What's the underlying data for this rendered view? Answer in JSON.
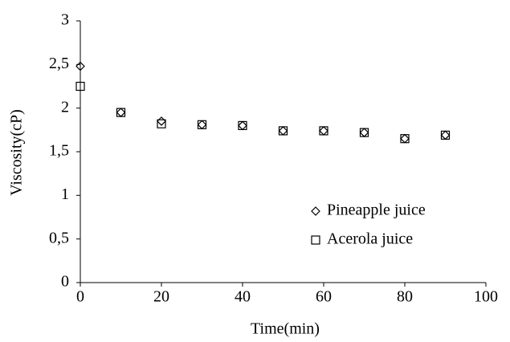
{
  "chart_data": {
    "type": "scatter",
    "x_label": "Time(min)",
    "y_label": "Viscosity(cP)",
    "x": [
      0,
      10,
      20,
      30,
      40,
      50,
      60,
      70,
      80,
      90
    ],
    "series": [
      {
        "name": "Pineapple juice",
        "color": "#000000",
        "marker": "diamond",
        "values": [
          2.48,
          1.95,
          1.85,
          1.81,
          1.8,
          1.74,
          1.74,
          1.72,
          1.65,
          1.69
        ]
      },
      {
        "name": "Acerola juice",
        "color": "#000000",
        "marker": "square",
        "values": [
          2.25,
          1.95,
          1.82,
          1.81,
          1.8,
          1.74,
          1.74,
          1.72,
          1.65,
          1.69
        ]
      }
    ],
    "xlim": [
      0,
      100
    ],
    "xticks": [
      0,
      20,
      40,
      60,
      80,
      100
    ],
    "ylim": [
      0,
      3
    ],
    "yticks": [
      0,
      {
        "value": 0.5,
        "label": "0,5"
      },
      1,
      {
        "value": 1.5,
        "label": "1,5"
      },
      2,
      {
        "value": 2.5,
        "label": "2,5"
      },
      3
    ],
    "grid": false,
    "legend": "lower right"
  }
}
